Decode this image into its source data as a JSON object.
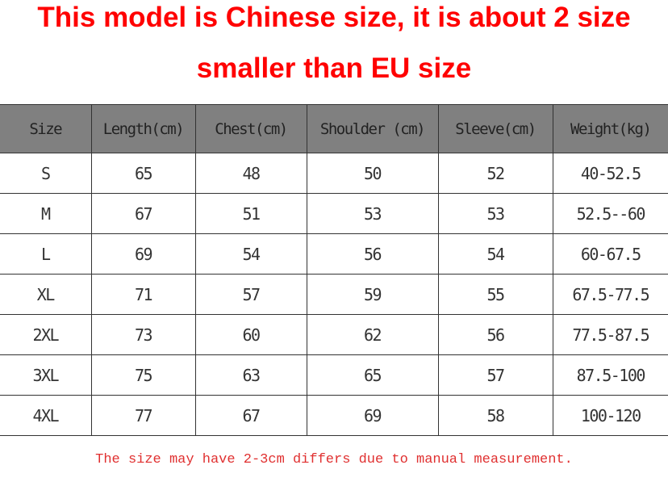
{
  "title_lines": [
    "This model is Chinese size, it is about 2 size",
    "smaller than EU size"
  ],
  "table": {
    "headers": [
      "Size",
      "Length(cm)",
      "Chest(cm)",
      "Shoulder (cm)",
      "Sleeve(cm)",
      "Weight(kg)"
    ],
    "rows": [
      [
        "S",
        "65",
        "48",
        "50",
        "52",
        "40-52.5"
      ],
      [
        "M",
        "67",
        "51",
        "53",
        "53",
        "52.5--60"
      ],
      [
        "L",
        "69",
        "54",
        "56",
        "54",
        "60-67.5"
      ],
      [
        "XL",
        "71",
        "57",
        "59",
        "55",
        "67.5-77.5"
      ],
      [
        "2XL",
        "73",
        "60",
        "62",
        "56",
        "77.5-87.5"
      ],
      [
        "3XL",
        "75",
        "63",
        "65",
        "57",
        "87.5-100"
      ],
      [
        "4XL",
        "77",
        "67",
        "69",
        "58",
        "100-120"
      ]
    ]
  },
  "note": "The size may have 2-3cm differs due to manual measurement.",
  "colors": {
    "title": "#ff0000",
    "header_bg": "#808080",
    "note": "#e03030"
  }
}
